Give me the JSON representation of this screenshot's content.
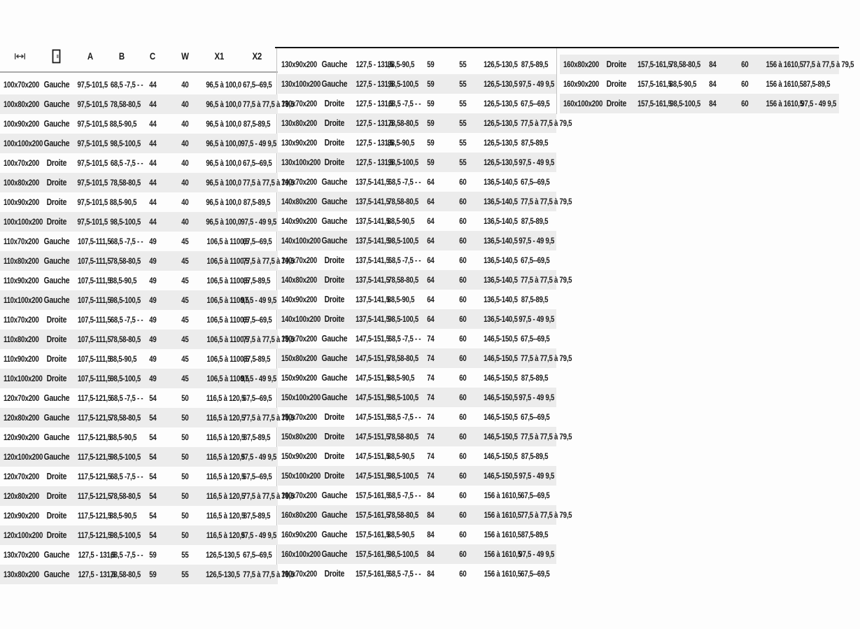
{
  "header": {
    "icons": [
      {
        "name": "width-dimension-icon"
      },
      {
        "name": "door-side-icon"
      }
    ],
    "labels": [
      "A",
      "B",
      "C",
      "W",
      "X1",
      "X2"
    ]
  },
  "colors": {
    "stripe": "#ececec",
    "text": "#1a1a1a",
    "top_rule": "#141414",
    "header_rule": "#ababab"
  },
  "tables": [
    {
      "name": "left-column",
      "rows": [
        {
          "size": "100x70x200",
          "side": "Gauche",
          "a": "97,5-101,5",
          "b": "68,5 -7,5 - -",
          "c": "44",
          "w": "40",
          "x1": "96,5 à 100,0",
          "x2": "67,5--69,5"
        },
        {
          "size": "100x80x200",
          "side": "Gauche",
          "a": "97,5-101,5",
          "b": "78,58-80,5",
          "c": "44",
          "w": "40",
          "x1": "96,5 à 100,0",
          "x2": "77,5 à 77,5 à 79,5"
        },
        {
          "size": "100x90x200",
          "side": "Gauche",
          "a": "97,5-101,5",
          "b": "88,5-90,5",
          "c": "44",
          "w": "40",
          "x1": "96,5 à 100,0",
          "x2": "87,5-89,5"
        },
        {
          "size": "100x100x200",
          "side": "Gauche",
          "a": "97,5-101,5",
          "b": "98,5-100,5",
          "c": "44",
          "w": "40",
          "x1": "96,5 à 100,0",
          "x2": "97,5 - 49 9,5"
        },
        {
          "size": "100x70x200",
          "side": "Droite",
          "a": "97,5-101,5",
          "b": "68,5 -7,5 - -",
          "c": "44",
          "w": "40",
          "x1": "96,5 à 100,0",
          "x2": "67,5--69,5"
        },
        {
          "size": "100x80x200",
          "side": "Droite",
          "a": "97,5-101,5",
          "b": "78,58-80,5",
          "c": "44",
          "w": "40",
          "x1": "96,5 à 100,0",
          "x2": "77,5 à 77,5 à 79,5"
        },
        {
          "size": "100x90x200",
          "side": "Droite",
          "a": "97,5-101,5",
          "b": "88,5-90,5",
          "c": "44",
          "w": "40",
          "x1": "96,5 à 100,0",
          "x2": "87,5-89,5"
        },
        {
          "size": "100x100x200",
          "side": "Droite",
          "a": "97,5-101,5",
          "b": "98,5-100,5",
          "c": "44",
          "w": "40",
          "x1": "96,5 à 100,0",
          "x2": "97,5 - 49 9,5"
        },
        {
          "size": "110x70x200",
          "side": "Gauche",
          "a": "107,5-111,5",
          "b": "68,5 -7,5 - -",
          "c": "49",
          "w": "45",
          "x1": "106,5 à 1100,5",
          "x2": "67,5--69,5"
        },
        {
          "size": "110x80x200",
          "side": "Gauche",
          "a": "107,5-111,5",
          "b": "78,58-80,5",
          "c": "49",
          "w": "45",
          "x1": "106,5 à 1100,5",
          "x2": "77,5 à 77,5 à 79,5"
        },
        {
          "size": "110x90x200",
          "side": "Gauche",
          "a": "107,5-111,5",
          "b": "88,5-90,5",
          "c": "49",
          "w": "45",
          "x1": "106,5 à 1100,5",
          "x2": "87,5-89,5"
        },
        {
          "size": "110x100x200",
          "side": "Gauche",
          "a": "107,5-111,5",
          "b": "98,5-100,5",
          "c": "49",
          "w": "45",
          "x1": "106,5 à 1100,5",
          "x2": "97,5 - 49 9,5"
        },
        {
          "size": "110x70x200",
          "side": "Droite",
          "a": "107,5-111,5",
          "b": "68,5 -7,5 - -",
          "c": "49",
          "w": "45",
          "x1": "106,5 à 1100,5",
          "x2": "67,5--69,5"
        },
        {
          "size": "110x80x200",
          "side": "Droite",
          "a": "107,5-111,5",
          "b": "78,58-80,5",
          "c": "49",
          "w": "45",
          "x1": "106,5 à 1100,5",
          "x2": "77,5 à 77,5 à 79,5"
        },
        {
          "size": "110x90x200",
          "side": "Droite",
          "a": "107,5-111,5",
          "b": "88,5-90,5",
          "c": "49",
          "w": "45",
          "x1": "106,5 à 1100,5",
          "x2": "87,5-89,5"
        },
        {
          "size": "110x100x200",
          "side": "Droite",
          "a": "107,5-111,5",
          "b": "98,5-100,5",
          "c": "49",
          "w": "45",
          "x1": "106,5 à 1100,5",
          "x2": "97,5 - 49 9,5"
        },
        {
          "size": "120x70x200",
          "side": "Gauche",
          "a": "117,5-121,5",
          "b": "68,5 -7,5 - -",
          "c": "54",
          "w": "50",
          "x1": "116,5 à 120,5",
          "x2": "67,5--69,5"
        },
        {
          "size": "120x80x200",
          "side": "Gauche",
          "a": "117,5-121,5",
          "b": "78,58-80,5",
          "c": "54",
          "w": "50",
          "x1": "116,5 à 120,5",
          "x2": "77,5 à 77,5 à 79,5"
        },
        {
          "size": "120x90x200",
          "side": "Gauche",
          "a": "117,5-121,5",
          "b": "88,5-90,5",
          "c": "54",
          "w": "50",
          "x1": "116,5 à 120,5",
          "x2": "87,5-89,5"
        },
        {
          "size": "120x100x200",
          "side": "Gauche",
          "a": "117,5-121,5",
          "b": "98,5-100,5",
          "c": "54",
          "w": "50",
          "x1": "116,5 à 120,5",
          "x2": "97,5 - 49 9,5"
        },
        {
          "size": "120x70x200",
          "side": "Droite",
          "a": "117,5-121,5",
          "b": "68,5 -7,5 - -",
          "c": "54",
          "w": "50",
          "x1": "116,5 à 120,5",
          "x2": "67,5--69,5"
        },
        {
          "size": "120x80x200",
          "side": "Droite",
          "a": "117,5-121,5",
          "b": "78,58-80,5",
          "c": "54",
          "w": "50",
          "x1": "116,5 à 120,5",
          "x2": "77,5 à 77,5 à 79,5"
        },
        {
          "size": "120x90x200",
          "side": "Droite",
          "a": "117,5-121,5",
          "b": "88,5-90,5",
          "c": "54",
          "w": "50",
          "x1": "116,5 à 120,5",
          "x2": "87,5-89,5"
        },
        {
          "size": "120x100x200",
          "side": "Droite",
          "a": "117,5-121,5",
          "b": "98,5-100,5",
          "c": "54",
          "w": "50",
          "x1": "116,5 à 120,5",
          "x2": "97,5 - 49 9,5"
        },
        {
          "size": "130x70x200",
          "side": "Gauche",
          "a": "127,5 - 131,5",
          "b": "68,5 -7,5 - -",
          "c": "59",
          "w": "55",
          "x1": "126,5-130,5",
          "x2": "67,5--69,5"
        },
        {
          "size": "130x80x200",
          "side": "Gauche",
          "a": "127,5 - 131,5",
          "b": "78,58-80,5",
          "c": "59",
          "w": "55",
          "x1": "126,5-130,5",
          "x2": "77,5 à 77,5 à 79,5"
        }
      ]
    },
    {
      "name": "middle-column",
      "rows": [
        {
          "size": "130x90x200",
          "side": "Gauche",
          "a": "127,5 - 131,5",
          "b": "88,5-90,5",
          "c": "59",
          "w": "55",
          "x1": "126,5-130,5",
          "x2": "87,5-89,5"
        },
        {
          "size": "130x100x200",
          "side": "Gauche",
          "a": "127,5 - 131,5",
          "b": "98,5-100,5",
          "c": "59",
          "w": "55",
          "x1": "126,5-130,5",
          "x2": "97,5 - 49 9,5"
        },
        {
          "size": "130x70x200",
          "side": "Droite",
          "a": "127,5 - 131,5",
          "b": "68,5 -7,5 - -",
          "c": "59",
          "w": "55",
          "x1": "126,5-130,5",
          "x2": "67,5--69,5"
        },
        {
          "size": "130x80x200",
          "side": "Droite",
          "a": "127,5 - 131,5",
          "b": "78,58-80,5",
          "c": "59",
          "w": "55",
          "x1": "126,5-130,5",
          "x2": "77,5 à 77,5 à 79,5"
        },
        {
          "size": "130x90x200",
          "side": "Droite",
          "a": "127,5 - 131,5",
          "b": "88,5-90,5",
          "c": "59",
          "w": "55",
          "x1": "126,5-130,5",
          "x2": "87,5-89,5"
        },
        {
          "size": "130x100x200",
          "side": "Droite",
          "a": "127,5 - 131,5",
          "b": "98,5-100,5",
          "c": "59",
          "w": "55",
          "x1": "126,5-130,5",
          "x2": "97,5 - 49 9,5"
        },
        {
          "size": "140x70x200",
          "side": "Gauche",
          "a": "137,5-141,5",
          "b": "68,5 -7,5 - -",
          "c": "64",
          "w": "60",
          "x1": "136,5-140,5",
          "x2": "67,5--69,5"
        },
        {
          "size": "140x80x200",
          "side": "Gauche",
          "a": "137,5-141,5",
          "b": "78,58-80,5",
          "c": "64",
          "w": "60",
          "x1": "136,5-140,5",
          "x2": "77,5 à 77,5 à 79,5"
        },
        {
          "size": "140x90x200",
          "side": "Gauche",
          "a": "137,5-141,5",
          "b": "88,5-90,5",
          "c": "64",
          "w": "60",
          "x1": "136,5-140,5",
          "x2": "87,5-89,5"
        },
        {
          "size": "140x100x200",
          "side": "Gauche",
          "a": "137,5-141,5",
          "b": "98,5-100,5",
          "c": "64",
          "w": "60",
          "x1": "136,5-140,5",
          "x2": "97,5 - 49 9,5"
        },
        {
          "size": "140x70x200",
          "side": "Droite",
          "a": "137,5-141,5",
          "b": "68,5 -7,5 - -",
          "c": "64",
          "w": "60",
          "x1": "136,5-140,5",
          "x2": "67,5--69,5"
        },
        {
          "size": "140x80x200",
          "side": "Droite",
          "a": "137,5-141,5",
          "b": "78,58-80,5",
          "c": "64",
          "w": "60",
          "x1": "136,5-140,5",
          "x2": "77,5 à 77,5 à 79,5"
        },
        {
          "size": "140x90x200",
          "side": "Droite",
          "a": "137,5-141,5",
          "b": "88,5-90,5",
          "c": "64",
          "w": "60",
          "x1": "136,5-140,5",
          "x2": "87,5-89,5"
        },
        {
          "size": "140x100x200",
          "side": "Droite",
          "a": "137,5-141,5",
          "b": "98,5-100,5",
          "c": "64",
          "w": "60",
          "x1": "136,5-140,5",
          "x2": "97,5 - 49 9,5"
        },
        {
          "size": "150x70x200",
          "side": "Gauche",
          "a": "147,5-151,5",
          "b": "68,5 -7,5 - -",
          "c": "74",
          "w": "60",
          "x1": "146,5-150,5",
          "x2": "67,5--69,5"
        },
        {
          "size": "150x80x200",
          "side": "Gauche",
          "a": "147,5-151,5",
          "b": "78,58-80,5",
          "c": "74",
          "w": "60",
          "x1": "146,5-150,5",
          "x2": "77,5 à 77,5 à 79,5"
        },
        {
          "size": "150x90x200",
          "side": "Gauche",
          "a": "147,5-151,5",
          "b": "88,5-90,5",
          "c": "74",
          "w": "60",
          "x1": "146,5-150,5",
          "x2": "87,5-89,5"
        },
        {
          "size": "150x100x200",
          "side": "Gauche",
          "a": "147,5-151,5",
          "b": "98,5-100,5",
          "c": "74",
          "w": "60",
          "x1": "146,5-150,5",
          "x2": "97,5 - 49 9,5"
        },
        {
          "size": "150x70x200",
          "side": "Droite",
          "a": "147,5-151,5",
          "b": "68,5 -7,5 - -",
          "c": "74",
          "w": "60",
          "x1": "146,5-150,5",
          "x2": "67,5--69,5"
        },
        {
          "size": "150x80x200",
          "side": "Droite",
          "a": "147,5-151,5",
          "b": "78,58-80,5",
          "c": "74",
          "w": "60",
          "x1": "146,5-150,5",
          "x2": "77,5 à 77,5 à 79,5"
        },
        {
          "size": "150x90x200",
          "side": "Droite",
          "a": "147,5-151,5",
          "b": "88,5-90,5",
          "c": "74",
          "w": "60",
          "x1": "146,5-150,5",
          "x2": "87,5-89,5"
        },
        {
          "size": "150x100x200",
          "side": "Droite",
          "a": "147,5-151,5",
          "b": "98,5-100,5",
          "c": "74",
          "w": "60",
          "x1": "146,5-150,5",
          "x2": "97,5 - 49 9,5"
        },
        {
          "size": "160x70x200",
          "side": "Gauche",
          "a": "157,5-161,5",
          "b": "68,5 -7,5 - -",
          "c": "84",
          "w": "60",
          "x1": "156 à 1610,5",
          "x2": "67,5--69,5"
        },
        {
          "size": "160x80x200",
          "side": "Gauche",
          "a": "157,5-161,5",
          "b": "78,58-80,5",
          "c": "84",
          "w": "60",
          "x1": "156 à 1610,5",
          "x2": "77,5 à 77,5 à 79,5"
        },
        {
          "size": "160x90x200",
          "side": "Gauche",
          "a": "157,5-161,5",
          "b": "88,5-90,5",
          "c": "84",
          "w": "60",
          "x1": "156 à 1610,5",
          "x2": "87,5-89,5"
        },
        {
          "size": "160x100x200",
          "side": "Gauche",
          "a": "157,5-161,5",
          "b": "98,5-100,5",
          "c": "84",
          "w": "60",
          "x1": "156 à 1610,5",
          "x2": "97,5 - 49 9,5"
        },
        {
          "size": "160x70x200",
          "side": "Droite",
          "a": "157,5-161,5",
          "b": "68,5 -7,5 - -",
          "c": "84",
          "w": "60",
          "x1": "156 à 1610,5",
          "x2": "67,5--69,5"
        }
      ]
    },
    {
      "name": "right-column",
      "rows": [
        {
          "size": "160x80x200",
          "side": "Droite",
          "a": "157,5-161,5",
          "b": "78,58-80,5",
          "c": "84",
          "w": "60",
          "x1": "156 à 1610,5",
          "x2": "77,5 à 77,5 à 79,5"
        },
        {
          "size": "160x90x200",
          "side": "Droite",
          "a": "157,5-161,5",
          "b": "88,5-90,5",
          "c": "84",
          "w": "60",
          "x1": "156 à 1610,5",
          "x2": "87,5-89,5"
        },
        {
          "size": "160x100x200",
          "side": "Droite",
          "a": "157,5-161,5",
          "b": "98,5-100,5",
          "c": "84",
          "w": "60",
          "x1": "156 à 1610,5",
          "x2": "97,5 - 49 9,5"
        }
      ]
    }
  ]
}
